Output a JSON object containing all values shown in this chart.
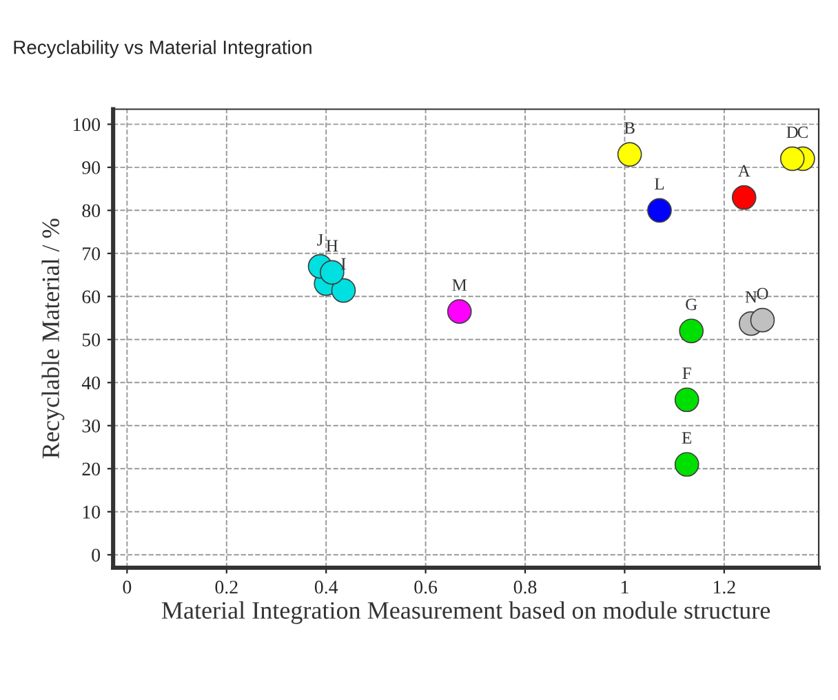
{
  "chart_data": {
    "type": "scatter",
    "title": "Recyclability vs Material Integration",
    "xlabel": "Material Integration Measurement based on module structure",
    "ylabel": "Recyclable Material / %",
    "x": [
      1.24,
      1.01,
      1.358,
      1.337,
      1.125,
      1.125,
      1.134,
      0.4,
      0.435,
      0.388,
      0.412,
      1.07,
      0.668,
      1.254,
      1.277
    ],
    "values": [
      83,
      93,
      92,
      92,
      21,
      36,
      52,
      63,
      61.4,
      67,
      65.6,
      80,
      56.5,
      53.7,
      54.5
    ],
    "colors": [
      "#ff0000",
      "#ffff00",
      "#ffff00",
      "#ffff00",
      "#00e000",
      "#00e000",
      "#00e000",
      "#00e0e0",
      "#00e0e0",
      "#00e0e0",
      "#00e0e0",
      "#0000ff",
      "#ff00ff",
      "#c0c0c0",
      "#c0c0c0"
    ],
    "annotations": [
      {
        "text": "A",
        "x": 1.24,
        "y": 83
      },
      {
        "text": "B",
        "x": 1.01,
        "y": 93
      },
      {
        "text": "C",
        "x": 1.358,
        "y": 92
      },
      {
        "text": "D",
        "x": 1.337,
        "y": 92
      },
      {
        "text": "E",
        "x": 1.125,
        "y": 21
      },
      {
        "text": "F",
        "x": 1.125,
        "y": 36
      },
      {
        "text": "G",
        "x": 1.134,
        "y": 52
      },
      {
        "text": "H",
        "x": 0.412,
        "y": 65.6
      },
      {
        "text": "I",
        "x": 0.435,
        "y": 61.4
      },
      {
        "text": "J",
        "x": 0.388,
        "y": 67
      },
      {
        "text": "L",
        "x": 1.07,
        "y": 80
      },
      {
        "text": "M",
        "x": 0.668,
        "y": 56.5
      },
      {
        "text": "N",
        "x": 1.254,
        "y": 53.7
      },
      {
        "text": "O",
        "x": 1.277,
        "y": 54.5
      }
    ],
    "xlim": [
      -0.028,
      1.39
    ],
    "ylim": [
      -3,
      103.5
    ],
    "xticks": [
      0,
      0.2,
      0.4,
      0.6,
      0.8,
      1,
      1.2
    ],
    "yticks": [
      0,
      10,
      20,
      30,
      40,
      50,
      60,
      70,
      80,
      90,
      100
    ],
    "grid": true,
    "marker": "circle"
  }
}
